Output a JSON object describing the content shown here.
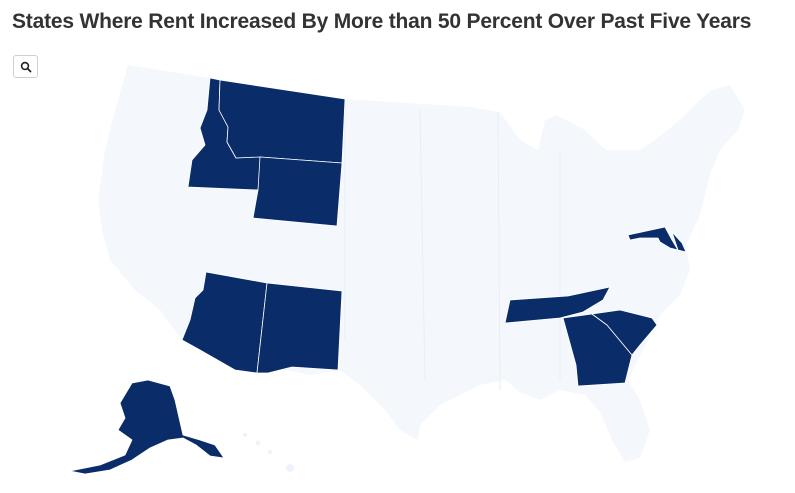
{
  "title": "States Where Rent Increased By More than 50 Percent Over Past Five Years",
  "toolbar": {
    "zoom_icon": "search-icon"
  },
  "colors": {
    "highlight": "#0a2c69",
    "base": "#f4f8fd",
    "border": "#ffffff"
  },
  "map": {
    "highlighted_states": [
      "Idaho",
      "Montana",
      "Wyoming",
      "Arizona",
      "New Mexico",
      "Tennessee",
      "Georgia",
      "South Carolina",
      "Maryland",
      "Delaware",
      "Alaska"
    ]
  }
}
